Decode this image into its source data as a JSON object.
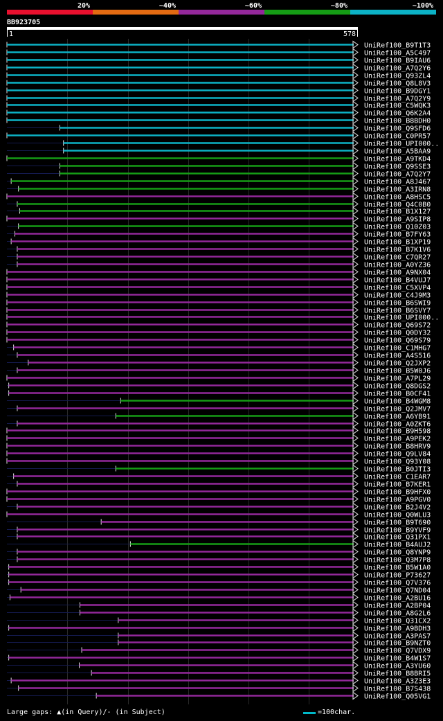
{
  "legend": {
    "items": [
      {
        "label": "20%",
        "color": "#e8102e"
      },
      {
        "label": "~40%",
        "color": "#e26a12"
      },
      {
        "label": "~60%",
        "color": "#93289a"
      },
      {
        "label": "~80%",
        "color": "#159c15"
      },
      {
        "label": "~100%",
        "color": "#0cb2c6"
      }
    ]
  },
  "query": {
    "id": "BB923705",
    "start_label": "1",
    "end_label": "578",
    "length": 578
  },
  "footer": {
    "gaps_label": "Large gaps: ▲(in Query)/- (in Subject)",
    "scale_label": "=100char.",
    "scale_color": "#00b8c8"
  },
  "hits": [
    {
      "name": "UniRef100_B9T1T3",
      "start": 1,
      "color": "#0cb2c6"
    },
    {
      "name": "UniRef100_A5C497",
      "start": 1,
      "color": "#0cb2c6"
    },
    {
      "name": "UniRef100_B9IAU6",
      "start": 1,
      "color": "#0cb2c6"
    },
    {
      "name": "UniRef100_A7Q2Y6",
      "start": 1,
      "color": "#0cb2c6"
    },
    {
      "name": "UniRef100_Q93ZL4",
      "start": 1,
      "color": "#0cb2c6"
    },
    {
      "name": "UniRef100_Q8L8V3",
      "start": 1,
      "color": "#0cb2c6"
    },
    {
      "name": "UniRef100_B9DGY1",
      "start": 1,
      "color": "#0cb2c6"
    },
    {
      "name": "UniRef100_A7Q2Y9",
      "start": 1,
      "color": "#0cb2c6"
    },
    {
      "name": "UniRef100_C5WQK3",
      "start": 1,
      "color": "#0cb2c6"
    },
    {
      "name": "UniRef100_Q6K2A4",
      "start": 1,
      "color": "#0cb2c6"
    },
    {
      "name": "UniRef100_B8BDH0",
      "start": 1,
      "color": "#0cb2c6"
    },
    {
      "name": "UniRef100_Q9SFD6",
      "start": 88,
      "color": "#0cb2c6"
    },
    {
      "name": "UniRef100_C0PR57",
      "start": 1,
      "color": "#0cb2c6"
    },
    {
      "name": "UniRef100_UPI000..",
      "start": 94,
      "color": "#0cb2c6"
    },
    {
      "name": "UniRef100_A5BAA9",
      "start": 94,
      "color": "#0cb2c6"
    },
    {
      "name": "UniRef100_A9TKD4",
      "start": 1,
      "color": "#159c15"
    },
    {
      "name": "UniRef100_Q9SSE3",
      "start": 88,
      "color": "#159c15"
    },
    {
      "name": "UniRef100_A7Q2Y7",
      "start": 88,
      "color": "#159c15"
    },
    {
      "name": "UniRef100_A8J467",
      "start": 8,
      "color": "#159c15"
    },
    {
      "name": "UniRef100_A3IRN8",
      "start": 20,
      "color": "#159c15"
    },
    {
      "name": "UniRef100_A8HSC5",
      "start": 1,
      "color": "#93289a"
    },
    {
      "name": "UniRef100_Q4C0B0",
      "start": 18,
      "color": "#159c15"
    },
    {
      "name": "UniRef100_B1X127",
      "start": 22,
      "color": "#159c15"
    },
    {
      "name": "UniRef100_A9SIP8",
      "start": 1,
      "color": "#93289a"
    },
    {
      "name": "UniRef100_Q10Z03",
      "start": 20,
      "color": "#159c15"
    },
    {
      "name": "UniRef100_B7FY63",
      "start": 14,
      "color": "#93289a"
    },
    {
      "name": "UniRef100_B1XP19",
      "start": 8,
      "color": "#93289a"
    },
    {
      "name": "UniRef100_B7K1V6",
      "start": 18,
      "color": "#93289a"
    },
    {
      "name": "UniRef100_C7QR27",
      "start": 18,
      "color": "#93289a"
    },
    {
      "name": "UniRef100_A0YZ36",
      "start": 18,
      "color": "#93289a"
    },
    {
      "name": "UniRef100_A9NX04",
      "start": 1,
      "color": "#93289a"
    },
    {
      "name": "UniRef100_B4VUJ7",
      "start": 1,
      "color": "#93289a"
    },
    {
      "name": "UniRef100_C5XVP4",
      "start": 1,
      "color": "#93289a"
    },
    {
      "name": "UniRef100_C4J9M3",
      "start": 1,
      "color": "#93289a"
    },
    {
      "name": "UniRef100_B6SWI9",
      "start": 1,
      "color": "#93289a"
    },
    {
      "name": "UniRef100_B6SVY7",
      "start": 1,
      "color": "#93289a"
    },
    {
      "name": "UniRef100_UPI000..",
      "start": 1,
      "color": "#93289a"
    },
    {
      "name": "UniRef100_Q69S72",
      "start": 1,
      "color": "#93289a"
    },
    {
      "name": "UniRef100_Q0DY32",
      "start": 1,
      "color": "#93289a"
    },
    {
      "name": "UniRef100_Q69S79",
      "start": 1,
      "color": "#93289a"
    },
    {
      "name": "UniRef100_C1MHG7",
      "start": 12,
      "color": "#93289a"
    },
    {
      "name": "UniRef100_A4S516",
      "start": 18,
      "color": "#93289a"
    },
    {
      "name": "UniRef100_Q2JXP2",
      "start": 36,
      "color": "#93289a"
    },
    {
      "name": "UniRef100_B5W0J6",
      "start": 18,
      "color": "#93289a"
    },
    {
      "name": "UniRef100_A7PL29",
      "start": 1,
      "color": "#93289a"
    },
    {
      "name": "UniRef100_Q8DGS2",
      "start": 4,
      "color": "#93289a"
    },
    {
      "name": "UniRef100_B0CF41",
      "start": 4,
      "color": "#93289a"
    },
    {
      "name": "UniRef100_B4WGM8",
      "start": 188,
      "color": "#159c15"
    },
    {
      "name": "UniRef100_Q2JMV7",
      "start": 18,
      "color": "#93289a"
    },
    {
      "name": "UniRef100_A6YB91",
      "start": 180,
      "color": "#159c15"
    },
    {
      "name": "UniRef100_A0ZKT6",
      "start": 18,
      "color": "#93289a"
    },
    {
      "name": "UniRef100_B9H598",
      "start": 1,
      "color": "#93289a"
    },
    {
      "name": "UniRef100_A9PEK2",
      "start": 1,
      "color": "#93289a"
    },
    {
      "name": "UniRef100_B8HRV9",
      "start": 1,
      "color": "#93289a"
    },
    {
      "name": "UniRef100_Q9LV84",
      "start": 1,
      "color": "#93289a"
    },
    {
      "name": "UniRef100_Q93Y08",
      "start": 1,
      "color": "#93289a"
    },
    {
      "name": "UniRef100_B0JTI3",
      "start": 180,
      "color": "#159c15"
    },
    {
      "name": "UniRef100_C1EAR7",
      "start": 12,
      "color": "#93289a"
    },
    {
      "name": "UniRef100_B7KER1",
      "start": 18,
      "color": "#93289a"
    },
    {
      "name": "UniRef100_B9HFX0",
      "start": 1,
      "color": "#93289a"
    },
    {
      "name": "UniRef100_A9PGV0",
      "start": 1,
      "color": "#93289a"
    },
    {
      "name": "UniRef100_B2J4V2",
      "start": 18,
      "color": "#93289a"
    },
    {
      "name": "UniRef100_Q0WLU3",
      "start": 1,
      "color": "#93289a"
    },
    {
      "name": "UniRef100_B9T690",
      "start": 156,
      "color": "#93289a"
    },
    {
      "name": "UniRef100_B9YVF9",
      "start": 18,
      "color": "#93289a"
    },
    {
      "name": "UniRef100_Q31PX1",
      "start": 18,
      "color": "#93289a"
    },
    {
      "name": "UniRef100_B4AUJ2",
      "start": 204,
      "color": "#159c15"
    },
    {
      "name": "UniRef100_Q8YNP9",
      "start": 18,
      "color": "#93289a"
    },
    {
      "name": "UniRef100_Q3M7P8",
      "start": 18,
      "color": "#93289a"
    },
    {
      "name": "UniRef100_B5W1A0",
      "start": 4,
      "color": "#93289a"
    },
    {
      "name": "UniRef100_P73627",
      "start": 4,
      "color": "#93289a"
    },
    {
      "name": "UniRef100_Q7V376",
      "start": 4,
      "color": "#93289a"
    },
    {
      "name": "UniRef100_Q7ND04",
      "start": 24,
      "color": "#93289a"
    },
    {
      "name": "UniRef100_A2BU16",
      "start": 6,
      "color": "#93289a"
    },
    {
      "name": "UniRef100_A2BP04",
      "start": 121,
      "color": "#93289a"
    },
    {
      "name": "UniRef100_A8G2L6",
      "start": 121,
      "color": "#93289a"
    },
    {
      "name": "UniRef100_Q31CX2",
      "start": 184,
      "color": "#93289a"
    },
    {
      "name": "UniRef100_A9BDH3",
      "start": 4,
      "color": "#93289a"
    },
    {
      "name": "UniRef100_A3PAS7",
      "start": 184,
      "color": "#93289a"
    },
    {
      "name": "UniRef100_B9NZT0",
      "start": 184,
      "color": "#93289a"
    },
    {
      "name": "UniRef100_Q7VDX9",
      "start": 124,
      "color": "#93289a"
    },
    {
      "name": "UniRef100_B4W1S7",
      "start": 4,
      "color": "#93289a"
    },
    {
      "name": "UniRef100_A3YU60",
      "start": 120,
      "color": "#93289a"
    },
    {
      "name": "UniRef100_B8BRI5",
      "start": 140,
      "color": "#93289a"
    },
    {
      "name": "UniRef100_A3Z3E3",
      "start": 8,
      "color": "#93289a"
    },
    {
      "name": "UniRef100_B7S438",
      "start": 20,
      "color": "#93289a"
    },
    {
      "name": "UniRef100_Q05VG1",
      "start": 148,
      "color": "#93289a"
    }
  ]
}
